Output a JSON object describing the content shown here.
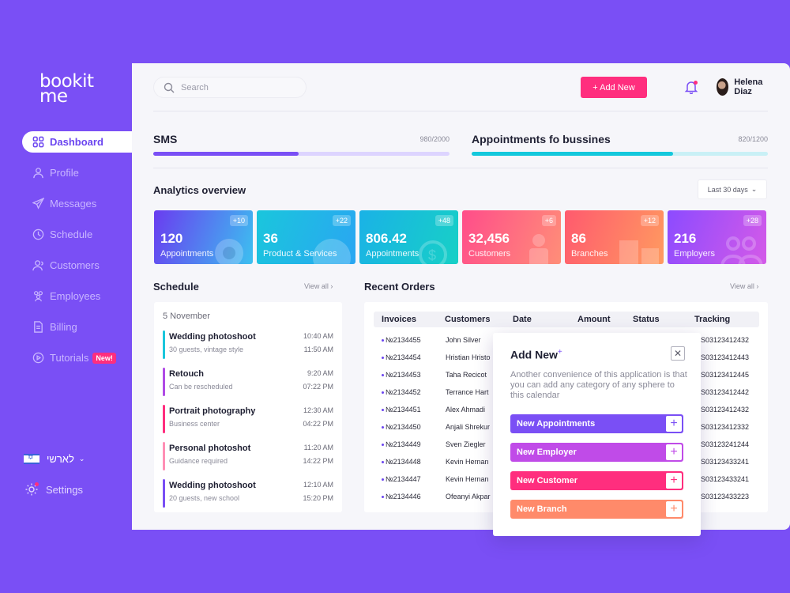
{
  "brand": {
    "logo_line1": "bookit",
    "logo_line2": "me"
  },
  "sidebar": {
    "items": [
      {
        "label": "Dashboard",
        "icon": "grid-icon"
      },
      {
        "label": "Profile",
        "icon": "user-icon"
      },
      {
        "label": "Messages",
        "icon": "send-icon"
      },
      {
        "label": "Schedule",
        "icon": "clock-icon"
      },
      {
        "label": "Customers",
        "icon": "users-icon"
      },
      {
        "label": "Employees",
        "icon": "team-icon"
      },
      {
        "label": "Billing",
        "icon": "receipt-icon"
      },
      {
        "label": "Tutorials",
        "icon": "play-icon",
        "badge": "New!"
      }
    ],
    "language": "לארשי",
    "settings": "Settings"
  },
  "topbar": {
    "search_placeholder": "Search",
    "add_new": "+ Add New",
    "user_name": "Helena Diaz"
  },
  "progress": [
    {
      "title": "SMS",
      "count": "980/2000",
      "fraction": 0.49,
      "color": "#7a4ff5",
      "track": "#ddd4ff"
    },
    {
      "title": "Appointments fo bussines",
      "count": "820/1200",
      "fraction": 0.68,
      "color": "#14c8dc",
      "track": "#c9f0f6"
    }
  ],
  "analytics": {
    "title": "Analytics overview",
    "range": "Last 30 days",
    "cards": [
      {
        "value": "120",
        "label": "Appointments",
        "delta": "+10",
        "g1": "#6a3cf0",
        "g2": "#3cc0f0"
      },
      {
        "value": "36",
        "label": "Product & Services",
        "delta": "+22",
        "g1": "#1ac6dc",
        "g2": "#2aa6f2"
      },
      {
        "value": "806.42",
        "label": "Appointments",
        "delta": "+48",
        "g1": "#1ab2e6",
        "g2": "#17d0c6"
      },
      {
        "value": "32,456",
        "label": "Customers",
        "delta": "+6",
        "g1": "#ff4d8a",
        "g2": "#ff8e78"
      },
      {
        "value": "86",
        "label": "Branches",
        "delta": "+12",
        "g1": "#ff5a6e",
        "g2": "#ff9a60"
      },
      {
        "value": "216",
        "label": "Employers",
        "delta": "+28",
        "g1": "#8c4bff",
        "g2": "#d45ae8"
      }
    ]
  },
  "schedule": {
    "title": "Schedule",
    "view_all": "View all",
    "date": "5 November",
    "items": [
      {
        "name": "Wedding photoshoot",
        "sub": "30 guests, vintage style",
        "t1": "10:40 AM",
        "t2": "11:50 AM",
        "color": "#1ac6dc"
      },
      {
        "name": "Retouch",
        "sub": "Can be rescheduled",
        "t1": "9:20 AM",
        "t2": "07:22 PM",
        "color": "#b04be6"
      },
      {
        "name": "Portrait photography",
        "sub": "Business center",
        "t1": "12:30 AM",
        "t2": "04:22 PM",
        "color": "#ff2e7e"
      },
      {
        "name": "Personal photoshot",
        "sub": "Guidance required",
        "t1": "11:20 AM",
        "t2": "14:22 PM",
        "color": "#ff8fb5"
      },
      {
        "name": "Wedding photoshoot",
        "sub": "20 guests, new school",
        "t1": "12:10 AM",
        "t2": "15:20 PM",
        "color": "#7a4ff5"
      }
    ]
  },
  "orders": {
    "title": "Recent Orders",
    "view_all": "View all",
    "headers": [
      "Invoices",
      "Customers",
      "Date",
      "Amount",
      "Status",
      "Tracking"
    ],
    "rows": [
      {
        "invoice": "№2134455",
        "customer": "John Silver",
        "tracking": "S03123412432"
      },
      {
        "invoice": "№2134454",
        "customer": "Hristian Hristo",
        "tracking": "S03123412443"
      },
      {
        "invoice": "№2134453",
        "customer": "Taha Recicot",
        "tracking": "S03123412445"
      },
      {
        "invoice": "№2134452",
        "customer": "Terrance Hart",
        "tracking": "S03123412442"
      },
      {
        "invoice": "№2134451",
        "customer": "Alex Ahmadi",
        "tracking": "S03123412432"
      },
      {
        "invoice": "№2134450",
        "customer": "Anjali Shrekur",
        "tracking": "S03123412332"
      },
      {
        "invoice": "№2134449",
        "customer": "Sven Ziegler",
        "tracking": "S03123241244"
      },
      {
        "invoice": "№2134448",
        "customer": "Kevin Hernan",
        "tracking": "S03123433241"
      },
      {
        "invoice": "№2134447",
        "customer": "Kevin Hernan",
        "tracking": "S03123433241"
      },
      {
        "invoice": "№2134446",
        "customer": "Ofeanyi Akpar",
        "tracking": "S03123433223"
      }
    ]
  },
  "popup": {
    "title": "Add New",
    "sup": "+",
    "description": "Another convenience of this application is that you can add any category of any sphere to this calendar",
    "buttons": [
      {
        "label": "New Appointments",
        "color": "#7a4ff5"
      },
      {
        "label": "New Employer",
        "color": "#c04be8"
      },
      {
        "label": "New Customer",
        "color": "#ff2e7e"
      },
      {
        "label": "New Branch",
        "color": "#ff8a6a"
      }
    ]
  }
}
